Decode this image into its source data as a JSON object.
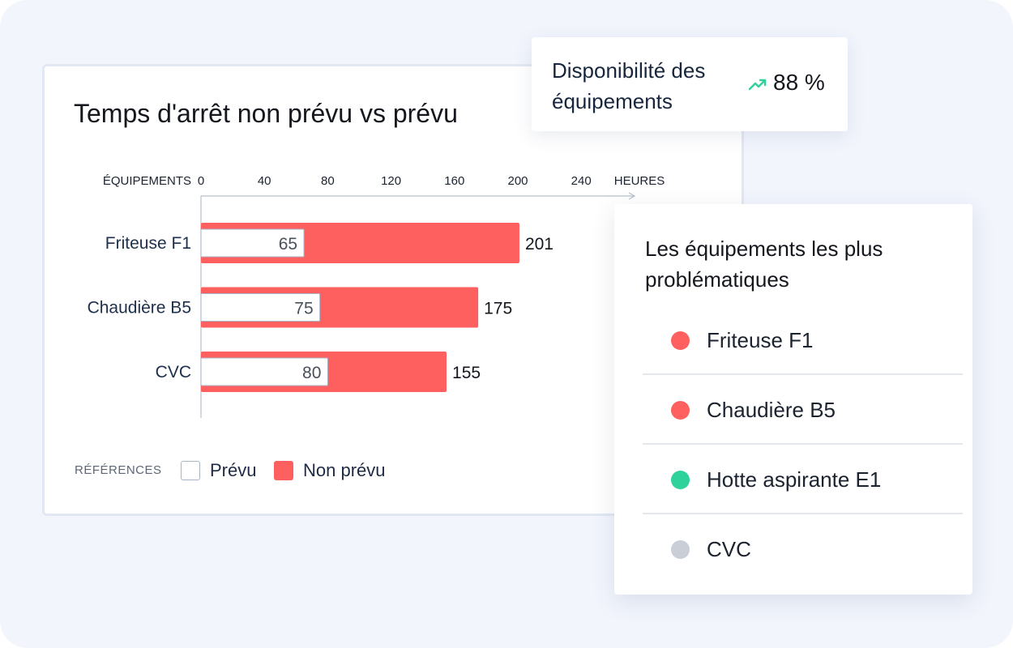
{
  "colors": {
    "unplanned": "#fe6060",
    "planned_fill": "#ffffff",
    "planned_border": "#a7b5c6",
    "status_red": "#fe6060",
    "status_green": "#2fd29b",
    "status_gray": "#c9ced7",
    "trend_green": "#2fd29b"
  },
  "chart_data": {
    "type": "bar",
    "orientation": "horizontal",
    "title": "Temps d'arrêt non prévu vs prévu",
    "ylabel": "ÉQUIPEMENTS",
    "xlabel": "HEURES",
    "categories": [
      "Friteuse F1",
      "Chaudière B5",
      "CVC"
    ],
    "series": [
      {
        "name": "Non prévu",
        "values": [
          201,
          175,
          155
        ]
      },
      {
        "name": "Prévu",
        "values": [
          65,
          75,
          80
        ]
      }
    ],
    "x_ticks": [
      0,
      40,
      80,
      120,
      160,
      200,
      240
    ],
    "xlim": [
      0,
      240
    ],
    "grid": false,
    "legend_position": "bottom-left"
  },
  "legend": {
    "title": "RÉFÉRENCES",
    "planned_label": "Prévu",
    "unplanned_label": "Non prévu"
  },
  "kpi": {
    "label": "Disponibilité des équipements",
    "trend_icon": "trending-up-icon",
    "value": "88 %"
  },
  "problem_list": {
    "title": "Les équipements les plus problématiques",
    "items": [
      {
        "label": "Friteuse F1",
        "status": "red"
      },
      {
        "label": "Chaudière B5",
        "status": "red"
      },
      {
        "label": "Hotte aspirante E1",
        "status": "green"
      },
      {
        "label": "CVC",
        "status": "gray"
      }
    ]
  }
}
